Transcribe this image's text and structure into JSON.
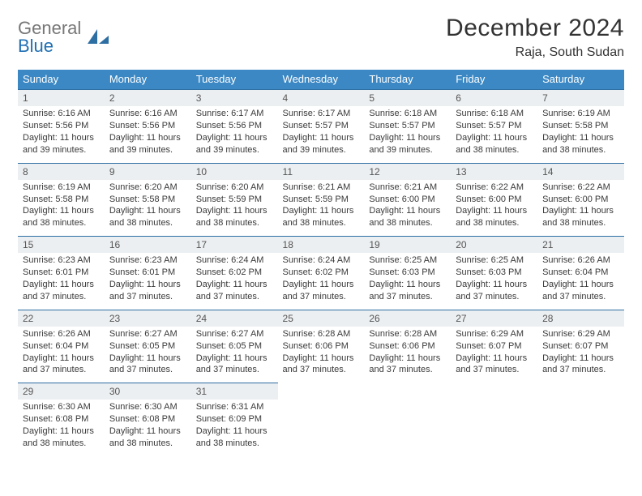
{
  "brand": {
    "part1": "General",
    "part2": "Blue",
    "logo_fill": "#2e6fa3"
  },
  "title": "December 2024",
  "location": "Raja, South Sudan",
  "colors": {
    "header_bg": "#3b88c4",
    "header_fg": "#ffffff",
    "daynum_bg": "#eceff1",
    "daynum_border": "#2e6fa3",
    "text": "#333333"
  },
  "day_headers": [
    "Sunday",
    "Monday",
    "Tuesday",
    "Wednesday",
    "Thursday",
    "Friday",
    "Saturday"
  ],
  "weeks": [
    [
      {
        "n": "1",
        "sunrise": "6:16 AM",
        "sunset": "5:56 PM",
        "day_h": 11,
        "day_m": 39
      },
      {
        "n": "2",
        "sunrise": "6:16 AM",
        "sunset": "5:56 PM",
        "day_h": 11,
        "day_m": 39
      },
      {
        "n": "3",
        "sunrise": "6:17 AM",
        "sunset": "5:56 PM",
        "day_h": 11,
        "day_m": 39
      },
      {
        "n": "4",
        "sunrise": "6:17 AM",
        "sunset": "5:57 PM",
        "day_h": 11,
        "day_m": 39
      },
      {
        "n": "5",
        "sunrise": "6:18 AM",
        "sunset": "5:57 PM",
        "day_h": 11,
        "day_m": 39
      },
      {
        "n": "6",
        "sunrise": "6:18 AM",
        "sunset": "5:57 PM",
        "day_h": 11,
        "day_m": 38
      },
      {
        "n": "7",
        "sunrise": "6:19 AM",
        "sunset": "5:58 PM",
        "day_h": 11,
        "day_m": 38
      }
    ],
    [
      {
        "n": "8",
        "sunrise": "6:19 AM",
        "sunset": "5:58 PM",
        "day_h": 11,
        "day_m": 38
      },
      {
        "n": "9",
        "sunrise": "6:20 AM",
        "sunset": "5:58 PM",
        "day_h": 11,
        "day_m": 38
      },
      {
        "n": "10",
        "sunrise": "6:20 AM",
        "sunset": "5:59 PM",
        "day_h": 11,
        "day_m": 38
      },
      {
        "n": "11",
        "sunrise": "6:21 AM",
        "sunset": "5:59 PM",
        "day_h": 11,
        "day_m": 38
      },
      {
        "n": "12",
        "sunrise": "6:21 AM",
        "sunset": "6:00 PM",
        "day_h": 11,
        "day_m": 38
      },
      {
        "n": "13",
        "sunrise": "6:22 AM",
        "sunset": "6:00 PM",
        "day_h": 11,
        "day_m": 38
      },
      {
        "n": "14",
        "sunrise": "6:22 AM",
        "sunset": "6:00 PM",
        "day_h": 11,
        "day_m": 38
      }
    ],
    [
      {
        "n": "15",
        "sunrise": "6:23 AM",
        "sunset": "6:01 PM",
        "day_h": 11,
        "day_m": 37
      },
      {
        "n": "16",
        "sunrise": "6:23 AM",
        "sunset": "6:01 PM",
        "day_h": 11,
        "day_m": 37
      },
      {
        "n": "17",
        "sunrise": "6:24 AM",
        "sunset": "6:02 PM",
        "day_h": 11,
        "day_m": 37
      },
      {
        "n": "18",
        "sunrise": "6:24 AM",
        "sunset": "6:02 PM",
        "day_h": 11,
        "day_m": 37
      },
      {
        "n": "19",
        "sunrise": "6:25 AM",
        "sunset": "6:03 PM",
        "day_h": 11,
        "day_m": 37
      },
      {
        "n": "20",
        "sunrise": "6:25 AM",
        "sunset": "6:03 PM",
        "day_h": 11,
        "day_m": 37
      },
      {
        "n": "21",
        "sunrise": "6:26 AM",
        "sunset": "6:04 PM",
        "day_h": 11,
        "day_m": 37
      }
    ],
    [
      {
        "n": "22",
        "sunrise": "6:26 AM",
        "sunset": "6:04 PM",
        "day_h": 11,
        "day_m": 37
      },
      {
        "n": "23",
        "sunrise": "6:27 AM",
        "sunset": "6:05 PM",
        "day_h": 11,
        "day_m": 37
      },
      {
        "n": "24",
        "sunrise": "6:27 AM",
        "sunset": "6:05 PM",
        "day_h": 11,
        "day_m": 37
      },
      {
        "n": "25",
        "sunrise": "6:28 AM",
        "sunset": "6:06 PM",
        "day_h": 11,
        "day_m": 37
      },
      {
        "n": "26",
        "sunrise": "6:28 AM",
        "sunset": "6:06 PM",
        "day_h": 11,
        "day_m": 37
      },
      {
        "n": "27",
        "sunrise": "6:29 AM",
        "sunset": "6:07 PM",
        "day_h": 11,
        "day_m": 37
      },
      {
        "n": "28",
        "sunrise": "6:29 AM",
        "sunset": "6:07 PM",
        "day_h": 11,
        "day_m": 37
      }
    ],
    [
      {
        "n": "29",
        "sunrise": "6:30 AM",
        "sunset": "6:08 PM",
        "day_h": 11,
        "day_m": 38
      },
      {
        "n": "30",
        "sunrise": "6:30 AM",
        "sunset": "6:08 PM",
        "day_h": 11,
        "day_m": 38
      },
      {
        "n": "31",
        "sunrise": "6:31 AM",
        "sunset": "6:09 PM",
        "day_h": 11,
        "day_m": 38
      },
      null,
      null,
      null,
      null
    ]
  ],
  "labels": {
    "sunrise_prefix": "Sunrise: ",
    "sunset_prefix": "Sunset: ",
    "daylight_prefix": "Daylight: ",
    "hours_word": " hours",
    "and_word": "and ",
    "minutes_word": " minutes."
  }
}
